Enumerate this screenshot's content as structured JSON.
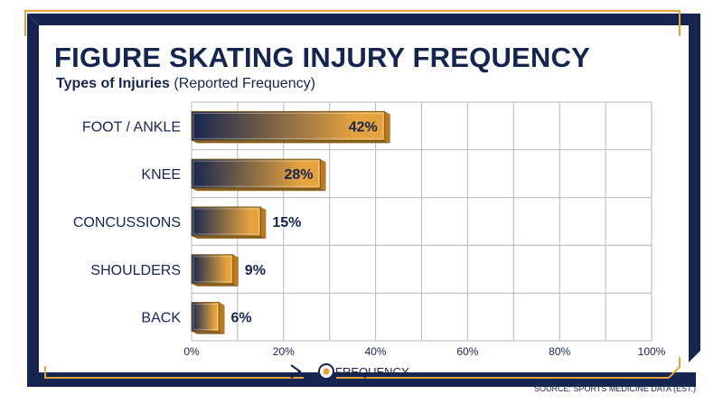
{
  "title": "FIGURE SKATING INJURY FREQUENCY",
  "subtitle_bold": "Types of Injuries",
  "subtitle_rest": "(Reported Frequency)",
  "xlabel": "FREQUENCY",
  "source": "SOURCE: SPORTS MEDICINE DATA (EST.)",
  "colors": {
    "navy": "#16254f",
    "gold": "#e5a33e",
    "grid": "#b8b8b8"
  },
  "chart_data": {
    "type": "bar",
    "orientation": "horizontal",
    "categories": [
      "FOOT / ANKLE",
      "KNEE",
      "CONCUSSIONS",
      "SHOULDERS",
      "BACK"
    ],
    "values": [
      42,
      28,
      15,
      9,
      6
    ],
    "value_labels": [
      "42%",
      "28%",
      "15%",
      "9%",
      "6%"
    ],
    "xlim": [
      0,
      100
    ],
    "xticks": [
      "0%",
      "20%",
      "40%",
      "60%",
      "80%",
      "100%"
    ],
    "grid": true
  }
}
